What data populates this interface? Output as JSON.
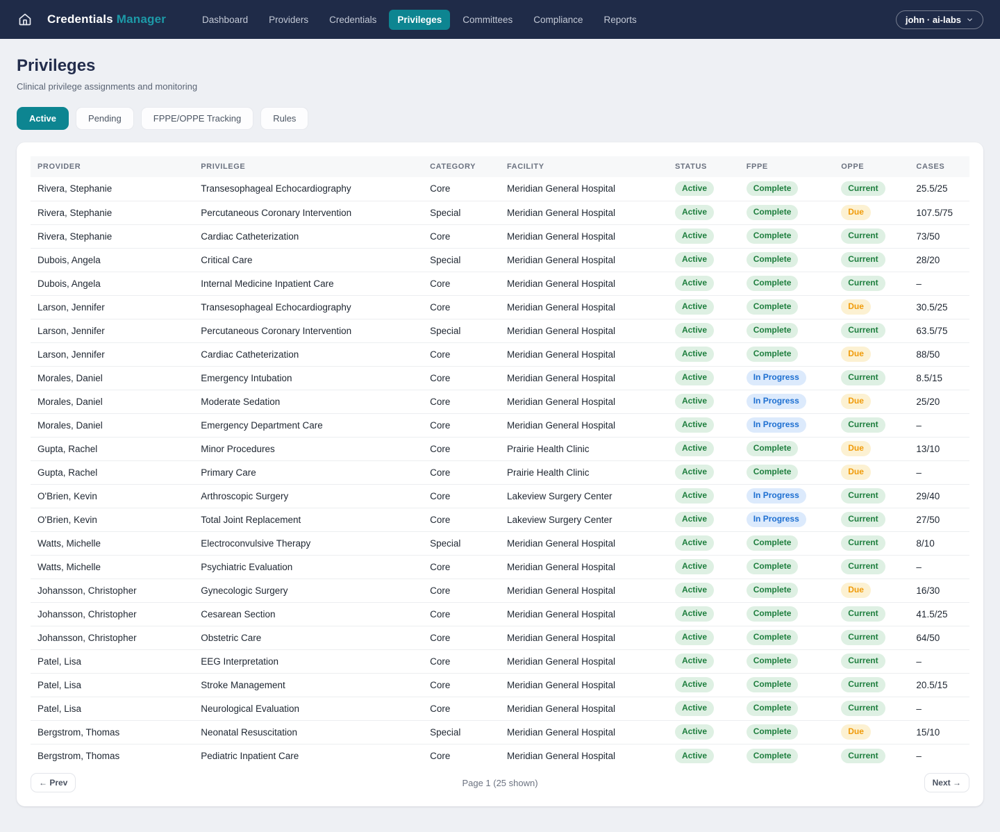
{
  "brand": {
    "primary": "Credentials",
    "accent": "Manager"
  },
  "nav": {
    "items": [
      "Dashboard",
      "Providers",
      "Credentials",
      "Privileges",
      "Committees",
      "Compliance",
      "Reports"
    ],
    "active_item": "Privileges",
    "user_menu_label": "john · ai-labs"
  },
  "page": {
    "title": "Privileges",
    "subtitle": "Clinical privilege assignments and monitoring"
  },
  "tabs": [
    {
      "label": "Active",
      "active": true
    },
    {
      "label": "Pending",
      "active": false
    },
    {
      "label": "FPPE/OPPE Tracking",
      "active": false
    },
    {
      "label": "Rules",
      "active": false
    }
  ],
  "table": {
    "columns": [
      "Provider",
      "Privilege",
      "Category",
      "Facility",
      "Status",
      "FPPE",
      "OPPE",
      "Cases"
    ],
    "rows": [
      {
        "provider": "Rivera, Stephanie",
        "privilege": "Transesophageal Echocardiography",
        "category": "Core",
        "facility": "Meridian General Hospital",
        "status": "Active",
        "fppe": "Complete",
        "oppe": "Current",
        "cases": "25.5/25"
      },
      {
        "provider": "Rivera, Stephanie",
        "privilege": "Percutaneous Coronary Intervention",
        "category": "Special",
        "facility": "Meridian General Hospital",
        "status": "Active",
        "fppe": "Complete",
        "oppe": "Due",
        "cases": "107.5/75"
      },
      {
        "provider": "Rivera, Stephanie",
        "privilege": "Cardiac Catheterization",
        "category": "Core",
        "facility": "Meridian General Hospital",
        "status": "Active",
        "fppe": "Complete",
        "oppe": "Current",
        "cases": "73/50"
      },
      {
        "provider": "Dubois, Angela",
        "privilege": "Critical Care",
        "category": "Special",
        "facility": "Meridian General Hospital",
        "status": "Active",
        "fppe": "Complete",
        "oppe": "Current",
        "cases": "28/20"
      },
      {
        "provider": "Dubois, Angela",
        "privilege": "Internal Medicine Inpatient Care",
        "category": "Core",
        "facility": "Meridian General Hospital",
        "status": "Active",
        "fppe": "Complete",
        "oppe": "Current",
        "cases": "–"
      },
      {
        "provider": "Larson, Jennifer",
        "privilege": "Transesophageal Echocardiography",
        "category": "Core",
        "facility": "Meridian General Hospital",
        "status": "Active",
        "fppe": "Complete",
        "oppe": "Due",
        "cases": "30.5/25"
      },
      {
        "provider": "Larson, Jennifer",
        "privilege": "Percutaneous Coronary Intervention",
        "category": "Special",
        "facility": "Meridian General Hospital",
        "status": "Active",
        "fppe": "Complete",
        "oppe": "Current",
        "cases": "63.5/75"
      },
      {
        "provider": "Larson, Jennifer",
        "privilege": "Cardiac Catheterization",
        "category": "Core",
        "facility": "Meridian General Hospital",
        "status": "Active",
        "fppe": "Complete",
        "oppe": "Due",
        "cases": "88/50"
      },
      {
        "provider": "Morales, Daniel",
        "privilege": "Emergency Intubation",
        "category": "Core",
        "facility": "Meridian General Hospital",
        "status": "Active",
        "fppe": "In Progress",
        "oppe": "Current",
        "cases": "8.5/15"
      },
      {
        "provider": "Morales, Daniel",
        "privilege": "Moderate Sedation",
        "category": "Core",
        "facility": "Meridian General Hospital",
        "status": "Active",
        "fppe": "In Progress",
        "oppe": "Due",
        "cases": "25/20"
      },
      {
        "provider": "Morales, Daniel",
        "privilege": "Emergency Department Care",
        "category": "Core",
        "facility": "Meridian General Hospital",
        "status": "Active",
        "fppe": "In Progress",
        "oppe": "Current",
        "cases": "–"
      },
      {
        "provider": "Gupta, Rachel",
        "privilege": "Minor Procedures",
        "category": "Core",
        "facility": "Prairie Health Clinic",
        "status": "Active",
        "fppe": "Complete",
        "oppe": "Due",
        "cases": "13/10"
      },
      {
        "provider": "Gupta, Rachel",
        "privilege": "Primary Care",
        "category": "Core",
        "facility": "Prairie Health Clinic",
        "status": "Active",
        "fppe": "Complete",
        "oppe": "Due",
        "cases": "–"
      },
      {
        "provider": "O'Brien, Kevin",
        "privilege": "Arthroscopic Surgery",
        "category": "Core",
        "facility": "Lakeview Surgery Center",
        "status": "Active",
        "fppe": "In Progress",
        "oppe": "Current",
        "cases": "29/40"
      },
      {
        "provider": "O'Brien, Kevin",
        "privilege": "Total Joint Replacement",
        "category": "Core",
        "facility": "Lakeview Surgery Center",
        "status": "Active",
        "fppe": "In Progress",
        "oppe": "Current",
        "cases": "27/50"
      },
      {
        "provider": "Watts, Michelle",
        "privilege": "Electroconvulsive Therapy",
        "category": "Special",
        "facility": "Meridian General Hospital",
        "status": "Active",
        "fppe": "Complete",
        "oppe": "Current",
        "cases": "8/10"
      },
      {
        "provider": "Watts, Michelle",
        "privilege": "Psychiatric Evaluation",
        "category": "Core",
        "facility": "Meridian General Hospital",
        "status": "Active",
        "fppe": "Complete",
        "oppe": "Current",
        "cases": "–"
      },
      {
        "provider": "Johansson, Christopher",
        "privilege": "Gynecologic Surgery",
        "category": "Core",
        "facility": "Meridian General Hospital",
        "status": "Active",
        "fppe": "Complete",
        "oppe": "Due",
        "cases": "16/30"
      },
      {
        "provider": "Johansson, Christopher",
        "privilege": "Cesarean Section",
        "category": "Core",
        "facility": "Meridian General Hospital",
        "status": "Active",
        "fppe": "Complete",
        "oppe": "Current",
        "cases": "41.5/25"
      },
      {
        "provider": "Johansson, Christopher",
        "privilege": "Obstetric Care",
        "category": "Core",
        "facility": "Meridian General Hospital",
        "status": "Active",
        "fppe": "Complete",
        "oppe": "Current",
        "cases": "64/50"
      },
      {
        "provider": "Patel, Lisa",
        "privilege": "EEG Interpretation",
        "category": "Core",
        "facility": "Meridian General Hospital",
        "status": "Active",
        "fppe": "Complete",
        "oppe": "Current",
        "cases": "–"
      },
      {
        "provider": "Patel, Lisa",
        "privilege": "Stroke Management",
        "category": "Core",
        "facility": "Meridian General Hospital",
        "status": "Active",
        "fppe": "Complete",
        "oppe": "Current",
        "cases": "20.5/15"
      },
      {
        "provider": "Patel, Lisa",
        "privilege": "Neurological Evaluation",
        "category": "Core",
        "facility": "Meridian General Hospital",
        "status": "Active",
        "fppe": "Complete",
        "oppe": "Current",
        "cases": "–"
      },
      {
        "provider": "Bergstrom, Thomas",
        "privilege": "Neonatal Resuscitation",
        "category": "Special",
        "facility": "Meridian General Hospital",
        "status": "Active",
        "fppe": "Complete",
        "oppe": "Due",
        "cases": "15/10"
      },
      {
        "provider": "Bergstrom, Thomas",
        "privilege": "Pediatric Inpatient Care",
        "category": "Core",
        "facility": "Meridian General Hospital",
        "status": "Active",
        "fppe": "Complete",
        "oppe": "Current",
        "cases": "–"
      }
    ]
  },
  "badge_styles": {
    "Active": "green",
    "Complete": "green",
    "Current": "green",
    "In Progress": "blue",
    "Due": "amber"
  },
  "pagination": {
    "prev_label": "← Prev",
    "status": "Page 1 (25 shown)",
    "next_label": "Next →"
  },
  "colors": {
    "navbar_bg": "#1f2b48",
    "accent_teal": "#0d8591",
    "brand_accent_text": "#1d9aa8",
    "badge_green_bg": "#def0e3",
    "badge_green_text": "#1e7e3e",
    "badge_blue_bg": "#dceafc",
    "badge_blue_text": "#1d6fd1",
    "badge_amber_bg": "#fcf1d2",
    "badge_amber_text": "#f09b0a",
    "page_bg": "#eef0f4"
  }
}
